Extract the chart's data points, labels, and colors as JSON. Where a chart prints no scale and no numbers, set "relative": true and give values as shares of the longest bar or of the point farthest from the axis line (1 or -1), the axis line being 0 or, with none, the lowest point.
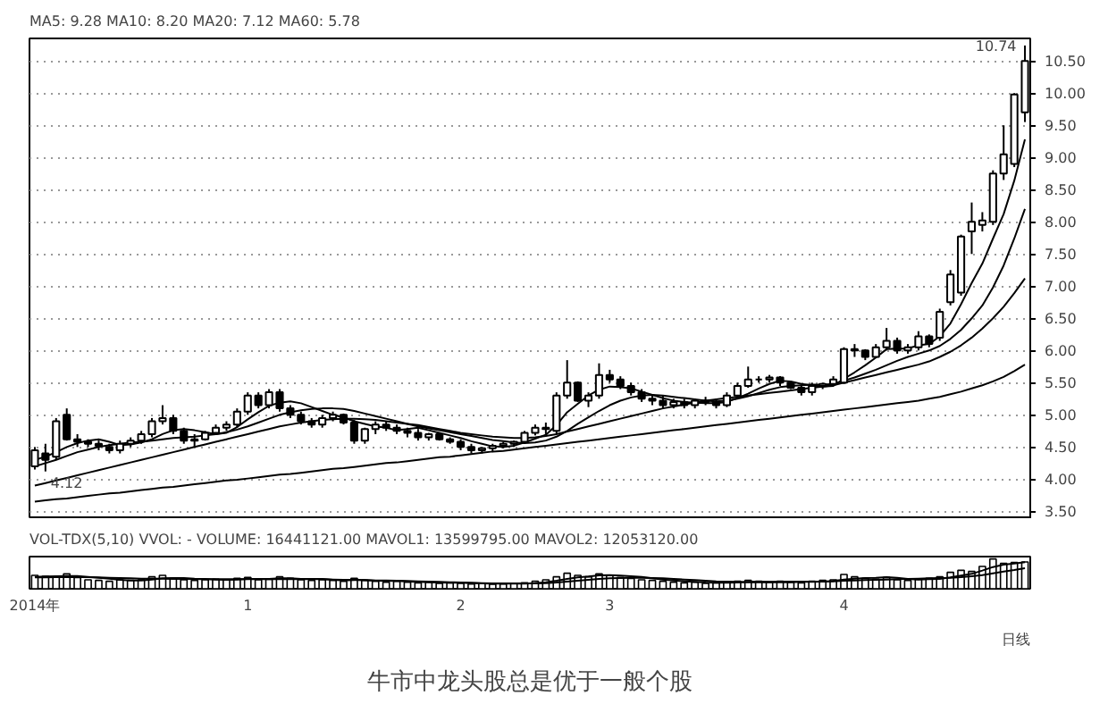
{
  "chart_data": [
    {
      "type": "candlestick",
      "tick_labels": "y",
      "grid": "y",
      "categories": [
        null,
        null,
        null,
        null,
        null,
        null,
        null,
        null,
        null,
        null,
        null,
        null,
        null,
        null,
        null,
        null,
        null,
        null,
        null,
        null,
        null,
        null,
        null,
        null,
        null,
        null,
        null,
        null,
        null,
        null,
        null,
        null,
        null,
        null,
        null,
        null,
        null,
        null,
        null,
        null,
        null,
        null,
        null,
        null,
        null,
        null,
        null,
        null,
        null,
        null,
        null,
        null,
        null,
        null,
        null,
        null,
        null,
        null,
        null,
        null,
        null,
        null,
        null,
        null,
        null,
        null,
        null,
        null,
        null,
        null,
        null,
        null,
        null,
        null,
        null,
        null,
        null,
        null,
        null,
        null,
        null,
        null,
        null,
        null,
        null,
        null,
        null,
        null,
        null,
        null,
        null,
        null,
        null,
        null
      ],
      "ylim": [
        3.38,
        10.85
      ],
      "yticks": [
        {
          "value": 3.5,
          "label": "3.50"
        },
        {
          "value": 4,
          "label": "4.00"
        },
        {
          "value": 4.5,
          "label": "4.50"
        },
        {
          "value": 5,
          "label": "5.00"
        },
        {
          "value": 5.5,
          "label": "5.50"
        },
        {
          "value": 6,
          "label": "6.00"
        },
        {
          "value": 6.5,
          "label": "6.50"
        },
        {
          "value": 7,
          "label": "7.00"
        },
        {
          "value": 7.5,
          "label": "7.50"
        },
        {
          "value": 8,
          "label": "8.00"
        },
        {
          "value": 8.5,
          "label": "8.50"
        },
        {
          "value": 9,
          "label": "9.00"
        },
        {
          "value": 9.5,
          "label": "9.50"
        },
        {
          "value": 10,
          "label": "10.00"
        },
        {
          "value": 10.5,
          "label": "10.50"
        }
      ],
      "ohlc": [
        [
          4.2,
          4.5,
          4.15,
          4.45
        ],
        [
          4.4,
          4.55,
          4.12,
          4.3
        ],
        [
          4.35,
          4.95,
          4.3,
          4.9
        ],
        [
          5.0,
          5.1,
          4.6,
          4.62
        ],
        [
          4.62,
          4.7,
          4.5,
          4.58
        ],
        [
          4.58,
          4.62,
          4.5,
          4.55
        ],
        [
          4.55,
          4.6,
          4.45,
          4.52
        ],
        [
          4.5,
          4.55,
          4.4,
          4.45
        ],
        [
          4.45,
          4.6,
          4.4,
          4.55
        ],
        [
          4.55,
          4.65,
          4.5,
          4.6
        ],
        [
          4.6,
          4.75,
          4.55,
          4.7
        ],
        [
          4.7,
          4.95,
          4.65,
          4.9
        ],
        [
          4.9,
          5.15,
          4.85,
          4.95
        ],
        [
          4.95,
          5.0,
          4.7,
          4.75
        ],
        [
          4.75,
          4.8,
          4.55,
          4.6
        ],
        [
          4.6,
          4.7,
          4.5,
          4.62
        ],
        [
          4.62,
          4.75,
          4.6,
          4.72
        ],
        [
          4.72,
          4.85,
          4.7,
          4.8
        ],
        [
          4.8,
          4.9,
          4.75,
          4.85
        ],
        [
          4.85,
          5.1,
          4.8,
          5.05
        ],
        [
          5.05,
          5.35,
          5.0,
          5.3
        ],
        [
          5.3,
          5.35,
          5.1,
          5.15
        ],
        [
          5.15,
          5.4,
          5.1,
          5.35
        ],
        [
          5.35,
          5.4,
          5.05,
          5.1
        ],
        [
          5.1,
          5.15,
          4.95,
          5.0
        ],
        [
          5.0,
          5.05,
          4.85,
          4.9
        ],
        [
          4.9,
          4.95,
          4.8,
          4.85
        ],
        [
          4.85,
          5.0,
          4.8,
          4.95
        ],
        [
          4.95,
          5.05,
          4.9,
          5.0
        ],
        [
          5.0,
          5.02,
          4.85,
          4.88
        ],
        [
          4.88,
          4.92,
          4.55,
          4.6
        ],
        [
          4.6,
          4.8,
          4.55,
          4.78
        ],
        [
          4.78,
          4.9,
          4.7,
          4.85
        ],
        [
          4.85,
          4.9,
          4.75,
          4.8
        ],
        [
          4.8,
          4.85,
          4.7,
          4.75
        ],
        [
          4.75,
          4.8,
          4.65,
          4.72
        ],
        [
          4.72,
          4.78,
          4.6,
          4.65
        ],
        [
          4.65,
          4.72,
          4.6,
          4.7
        ],
        [
          4.7,
          4.72,
          4.6,
          4.62
        ],
        [
          4.62,
          4.65,
          4.55,
          4.58
        ],
        [
          4.58,
          4.62,
          4.45,
          4.5
        ],
        [
          4.5,
          4.55,
          4.4,
          4.45
        ],
        [
          4.45,
          4.5,
          4.4,
          4.48
        ],
        [
          4.48,
          4.55,
          4.42,
          4.52
        ],
        [
          4.52,
          4.58,
          4.48,
          4.55
        ],
        [
          4.55,
          4.6,
          4.5,
          4.58
        ],
        [
          4.58,
          4.75,
          4.55,
          4.72
        ],
        [
          4.72,
          4.85,
          4.68,
          4.8
        ],
        [
          4.8,
          4.88,
          4.7,
          4.78
        ],
        [
          4.75,
          5.35,
          4.7,
          5.3
        ],
        [
          5.3,
          5.85,
          5.25,
          5.5
        ],
        [
          5.5,
          5.52,
          5.2,
          5.22
        ],
        [
          5.22,
          5.35,
          5.12,
          5.3
        ],
        [
          5.3,
          5.8,
          5.25,
          5.62
        ],
        [
          5.62,
          5.7,
          5.5,
          5.55
        ],
        [
          5.55,
          5.6,
          5.4,
          5.45
        ],
        [
          5.45,
          5.5,
          5.3,
          5.35
        ],
        [
          5.35,
          5.4,
          5.2,
          5.25
        ],
        [
          5.25,
          5.3,
          5.15,
          5.22
        ],
        [
          5.22,
          5.3,
          5.1,
          5.15
        ],
        [
          5.15,
          5.25,
          5.1,
          5.2
        ],
        [
          5.2,
          5.25,
          5.1,
          5.15
        ],
        [
          5.15,
          5.25,
          5.1,
          5.22
        ],
        [
          5.22,
          5.28,
          5.15,
          5.2
        ],
        [
          5.2,
          5.25,
          5.1,
          5.15
        ],
        [
          5.15,
          5.35,
          5.12,
          5.3
        ],
        [
          5.3,
          5.5,
          5.28,
          5.45
        ],
        [
          5.45,
          5.75,
          5.42,
          5.55
        ],
        [
          5.55,
          5.6,
          5.5,
          5.55
        ],
        [
          5.55,
          5.62,
          5.5,
          5.58
        ],
        [
          5.58,
          5.6,
          5.45,
          5.5
        ],
        [
          5.5,
          5.52,
          5.4,
          5.42
        ],
        [
          5.42,
          5.45,
          5.3,
          5.35
        ],
        [
          5.35,
          5.5,
          5.3,
          5.45
        ],
        [
          5.45,
          5.5,
          5.4,
          5.48
        ],
        [
          5.48,
          5.6,
          5.45,
          5.55
        ],
        [
          5.5,
          6.05,
          5.48,
          6.02
        ],
        [
          6.02,
          6.1,
          5.9,
          6.0
        ],
        [
          6.0,
          6.02,
          5.85,
          5.9
        ],
        [
          5.9,
          6.1,
          5.88,
          6.05
        ],
        [
          6.05,
          6.35,
          6.0,
          6.15
        ],
        [
          6.15,
          6.2,
          5.95,
          6.0
        ],
        [
          6.0,
          6.1,
          5.95,
          6.05
        ],
        [
          6.05,
          6.3,
          6.0,
          6.22
        ],
        [
          6.22,
          6.25,
          6.05,
          6.1
        ],
        [
          6.2,
          6.65,
          6.15,
          6.6
        ],
        [
          6.75,
          7.25,
          6.7,
          7.18
        ],
        [
          6.9,
          7.8,
          6.85,
          7.77
        ],
        [
          7.85,
          8.3,
          7.5,
          8.0
        ],
        [
          7.95,
          8.15,
          7.85,
          8.02
        ],
        [
          8.0,
          8.8,
          7.95,
          8.75
        ],
        [
          8.75,
          9.5,
          8.65,
          9.05
        ],
        [
          8.9,
          10.0,
          8.85,
          9.98
        ],
        [
          9.7,
          10.74,
          9.55,
          10.5
        ]
      ],
      "series": [
        {
          "name": "MA5: 9.28",
          "type": "line",
          "color": "#000000",
          "values": [
            4.3,
            4.35,
            4.42,
            4.5,
            4.56,
            4.6,
            4.62,
            4.58,
            4.53,
            4.54,
            4.57,
            4.62,
            4.7,
            4.76,
            4.78,
            4.76,
            4.73,
            4.7,
            4.72,
            4.81,
            4.93,
            5.04,
            5.14,
            5.19,
            5.21,
            5.18,
            5.12,
            5.06,
            5.0,
            4.96,
            4.9,
            4.86,
            4.82,
            4.8,
            4.76,
            4.78,
            4.8,
            4.76,
            4.72,
            4.68,
            4.64,
            4.59,
            4.55,
            4.51,
            4.5,
            4.52,
            4.57,
            4.63,
            4.69,
            4.84,
            5.04,
            5.17,
            5.3,
            5.39,
            5.44,
            5.43,
            5.41,
            5.36,
            5.31,
            5.26,
            5.22,
            5.2,
            5.19,
            5.18,
            5.18,
            5.2,
            5.26,
            5.33,
            5.41,
            5.48,
            5.53,
            5.52,
            5.48,
            5.46,
            5.44,
            5.45,
            5.56,
            5.66,
            5.77,
            5.89,
            6.02,
            6.03,
            6.03,
            6.08,
            6.1,
            6.22,
            6.42,
            6.72,
            7.05,
            7.35,
            7.74,
            8.12,
            8.64,
            9.28
          ]
        },
        {
          "name": "MA10: 8.20",
          "type": "line",
          "color": "#000000",
          "values": [
            4.2,
            4.25,
            4.3,
            4.36,
            4.42,
            4.46,
            4.5,
            4.53,
            4.55,
            4.57,
            4.58,
            4.6,
            4.62,
            4.64,
            4.65,
            4.66,
            4.68,
            4.7,
            4.73,
            4.77,
            4.82,
            4.88,
            4.94,
            5.0,
            5.04,
            5.07,
            5.09,
            5.1,
            5.1,
            5.09,
            5.06,
            5.02,
            4.98,
            4.94,
            4.9,
            4.86,
            4.82,
            4.79,
            4.76,
            4.73,
            4.7,
            4.67,
            4.64,
            4.61,
            4.59,
            4.57,
            4.56,
            4.57,
            4.6,
            4.66,
            4.75,
            4.86,
            4.96,
            5.06,
            5.15,
            5.22,
            5.27,
            5.3,
            5.31,
            5.3,
            5.28,
            5.26,
            5.24,
            5.22,
            5.21,
            5.22,
            5.25,
            5.29,
            5.34,
            5.39,
            5.43,
            5.45,
            5.46,
            5.47,
            5.47,
            5.48,
            5.53,
            5.58,
            5.64,
            5.7,
            5.77,
            5.84,
            5.9,
            5.95,
            6.0,
            6.07,
            6.18,
            6.32,
            6.5,
            6.7,
            6.98,
            7.32,
            7.74,
            8.2
          ]
        },
        {
          "name": "MA20: 7.12",
          "type": "line",
          "color": "#000000",
          "values": [
            3.9,
            3.94,
            3.98,
            4.02,
            4.06,
            4.1,
            4.14,
            4.18,
            4.22,
            4.26,
            4.3,
            4.34,
            4.38,
            4.42,
            4.46,
            4.5,
            4.54,
            4.58,
            4.62,
            4.66,
            4.7,
            4.74,
            4.78,
            4.82,
            4.85,
            4.88,
            4.9,
            4.92,
            4.93,
            4.94,
            4.94,
            4.93,
            4.92,
            4.9,
            4.88,
            4.86,
            4.84,
            4.81,
            4.78,
            4.75,
            4.72,
            4.7,
            4.68,
            4.66,
            4.65,
            4.64,
            4.64,
            4.65,
            4.67,
            4.7,
            4.74,
            4.78,
            4.82,
            4.86,
            4.9,
            4.94,
            4.98,
            5.02,
            5.06,
            5.1,
            5.13,
            5.16,
            5.19,
            5.22,
            5.24,
            5.26,
            5.28,
            5.3,
            5.32,
            5.34,
            5.36,
            5.38,
            5.4,
            5.42,
            5.44,
            5.46,
            5.5,
            5.54,
            5.58,
            5.62,
            5.66,
            5.7,
            5.74,
            5.78,
            5.83,
            5.9,
            5.98,
            6.08,
            6.2,
            6.34,
            6.5,
            6.68,
            6.89,
            7.12
          ]
        },
        {
          "name": "MA60: 5.78",
          "type": "line",
          "color": "#000000",
          "values": [
            3.65,
            3.67,
            3.69,
            3.7,
            3.72,
            3.74,
            3.76,
            3.78,
            3.79,
            3.81,
            3.83,
            3.85,
            3.87,
            3.88,
            3.9,
            3.92,
            3.94,
            3.96,
            3.98,
            3.99,
            4.01,
            4.03,
            4.05,
            4.07,
            4.08,
            4.1,
            4.12,
            4.14,
            4.16,
            4.17,
            4.19,
            4.21,
            4.23,
            4.25,
            4.26,
            4.28,
            4.3,
            4.32,
            4.34,
            4.35,
            4.37,
            4.39,
            4.41,
            4.43,
            4.44,
            4.46,
            4.48,
            4.5,
            4.52,
            4.54,
            4.56,
            4.58,
            4.6,
            4.62,
            4.64,
            4.66,
            4.68,
            4.7,
            4.72,
            4.74,
            4.76,
            4.78,
            4.8,
            4.82,
            4.84,
            4.86,
            4.88,
            4.9,
            4.92,
            4.94,
            4.96,
            4.98,
            5.0,
            5.02,
            5.04,
            5.06,
            5.08,
            5.1,
            5.12,
            5.14,
            5.16,
            5.18,
            5.2,
            5.22,
            5.25,
            5.28,
            5.32,
            5.36,
            5.41,
            5.46,
            5.52,
            5.59,
            5.68,
            5.78
          ]
        }
      ],
      "annotations": [
        "10.74",
        "4.12"
      ]
    },
    {
      "type": "bar",
      "relative": true,
      "tick_labels": "x",
      "title": "VOL-TDX(5,10) VVOL: -   VOLUME: 16441121.00  MAVOL1: 13599795.00  MAVOL2: 12053120.00",
      "categories": [
        "2014年",
        null,
        null,
        null,
        null,
        null,
        null,
        null,
        null,
        null,
        null,
        null,
        null,
        null,
        null,
        null,
        null,
        null,
        null,
        null,
        "1",
        null,
        null,
        null,
        null,
        null,
        null,
        null,
        null,
        null,
        null,
        null,
        null,
        null,
        null,
        null,
        null,
        null,
        null,
        null,
        "2",
        null,
        null,
        null,
        null,
        null,
        null,
        null,
        null,
        null,
        null,
        null,
        null,
        null,
        "3",
        null,
        null,
        null,
        null,
        null,
        null,
        null,
        null,
        null,
        null,
        null,
        null,
        null,
        null,
        null,
        null,
        null,
        null,
        null,
        null,
        null,
        "4",
        null,
        null,
        null,
        null,
        null,
        null,
        null,
        null,
        null,
        null,
        null,
        null,
        null,
        null,
        null,
        null,
        null
      ],
      "series": [
        {
          "type": "bar",
          "color": "#ffffff",
          "values": [
            0.45,
            0.42,
            0.4,
            0.5,
            0.38,
            0.3,
            0.28,
            0.25,
            0.3,
            0.28,
            0.3,
            0.4,
            0.45,
            0.35,
            0.3,
            0.28,
            0.3,
            0.32,
            0.3,
            0.35,
            0.38,
            0.3,
            0.32,
            0.4,
            0.35,
            0.3,
            0.28,
            0.3,
            0.28,
            0.25,
            0.35,
            0.28,
            0.25,
            0.22,
            0.25,
            0.22,
            0.2,
            0.22,
            0.18,
            0.2,
            0.18,
            0.16,
            0.18,
            0.15,
            0.16,
            0.18,
            0.2,
            0.25,
            0.3,
            0.4,
            0.52,
            0.45,
            0.4,
            0.5,
            0.45,
            0.38,
            0.35,
            0.3,
            0.28,
            0.25,
            0.22,
            0.2,
            0.22,
            0.18,
            0.2,
            0.22,
            0.25,
            0.28,
            0.25,
            0.22,
            0.25,
            0.22,
            0.2,
            0.25,
            0.28,
            0.3,
            0.48,
            0.4,
            0.35,
            0.32,
            0.38,
            0.3,
            0.28,
            0.32,
            0.35,
            0.4,
            0.55,
            0.62,
            0.58,
            0.75,
            1.0,
            0.85,
            0.88,
            0.9
          ]
        },
        {
          "type": "line",
          "color": "#000000",
          "values": [
            0.4,
            0.41,
            0.42,
            0.43,
            0.43,
            0.4,
            0.37,
            0.34,
            0.3,
            0.28,
            0.28,
            0.31,
            0.35,
            0.36,
            0.36,
            0.34,
            0.33,
            0.31,
            0.3,
            0.31,
            0.33,
            0.33,
            0.33,
            0.35,
            0.35,
            0.33,
            0.33,
            0.33,
            0.3,
            0.28,
            0.29,
            0.29,
            0.27,
            0.26,
            0.27,
            0.24,
            0.23,
            0.22,
            0.21,
            0.2,
            0.2,
            0.19,
            0.18,
            0.17,
            0.17,
            0.17,
            0.17,
            0.19,
            0.22,
            0.27,
            0.33,
            0.38,
            0.41,
            0.45,
            0.46,
            0.44,
            0.42,
            0.4,
            0.35,
            0.31,
            0.28,
            0.25,
            0.23,
            0.21,
            0.2,
            0.2,
            0.21,
            0.23,
            0.24,
            0.23,
            0.24,
            0.24,
            0.24,
            0.24,
            0.24,
            0.26,
            0.31,
            0.34,
            0.36,
            0.37,
            0.39,
            0.37,
            0.33,
            0.31,
            0.32,
            0.33,
            0.38,
            0.44,
            0.5,
            0.61,
            0.73,
            0.81,
            0.85,
            0.89
          ]
        },
        {
          "type": "line",
          "color": "#000000",
          "values": [
            0.38,
            0.38,
            0.39,
            0.39,
            0.39,
            0.39,
            0.38,
            0.37,
            0.36,
            0.35,
            0.34,
            0.34,
            0.34,
            0.33,
            0.33,
            0.32,
            0.32,
            0.32,
            0.32,
            0.32,
            0.32,
            0.32,
            0.32,
            0.32,
            0.32,
            0.32,
            0.32,
            0.32,
            0.31,
            0.3,
            0.3,
            0.29,
            0.28,
            0.28,
            0.27,
            0.26,
            0.25,
            0.24,
            0.23,
            0.22,
            0.21,
            0.2,
            0.19,
            0.18,
            0.18,
            0.18,
            0.18,
            0.18,
            0.19,
            0.21,
            0.24,
            0.27,
            0.3,
            0.33,
            0.35,
            0.36,
            0.37,
            0.37,
            0.36,
            0.35,
            0.33,
            0.31,
            0.29,
            0.27,
            0.25,
            0.24,
            0.23,
            0.22,
            0.22,
            0.22,
            0.22,
            0.22,
            0.23,
            0.23,
            0.24,
            0.25,
            0.27,
            0.28,
            0.29,
            0.3,
            0.31,
            0.32,
            0.33,
            0.34,
            0.35,
            0.36,
            0.37,
            0.39,
            0.42,
            0.46,
            0.52,
            0.58,
            0.63,
            0.69
          ]
        }
      ],
      "annotations": [
        "日线",
        "牛市中龙头股总是优于一般个股"
      ]
    }
  ]
}
